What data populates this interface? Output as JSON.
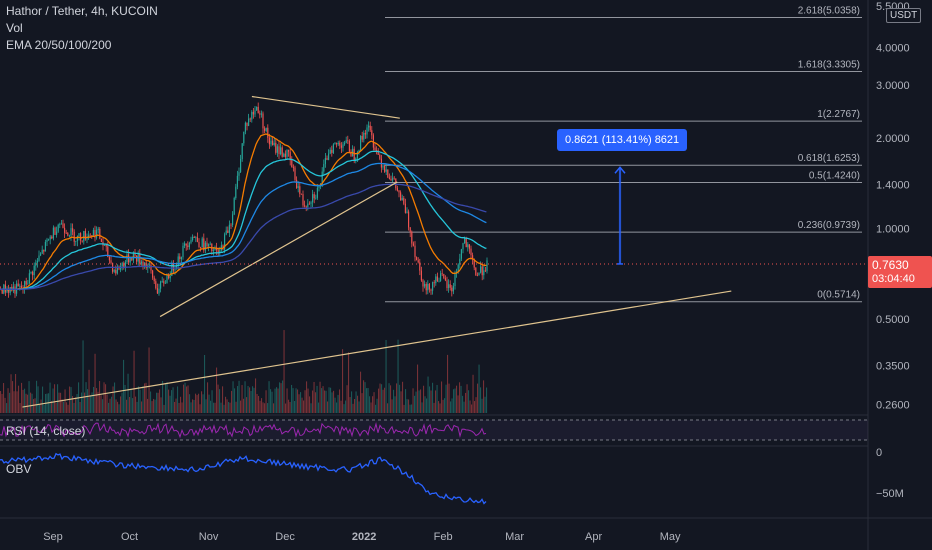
{
  "header": {
    "symbol": "Hathor / Tether, 4h, KUCOIN",
    "volume_label": "Vol",
    "ema_label": "EMA 20/50/100/200",
    "currency": "USDT"
  },
  "current_price": {
    "value": "0.7630",
    "countdown": "03:04:40",
    "color": "#ef5350"
  },
  "measure_label": "0.8621 (113.41%) 8621",
  "indicators": {
    "rsi_label": "RSI (14, close)",
    "obv_label": "OBV"
  },
  "colors": {
    "up": "#26a69a",
    "down": "#ef5350",
    "accent": "#2962ff",
    "trendline": "#e0c48f",
    "rsi": "#9c27b0",
    "obv": "#2962ff"
  },
  "chart_data": {
    "type": "candlestick",
    "y_scale": "log",
    "ylim": [
      0.24,
      5.5
    ],
    "y_ticks": [
      "5.5000",
      "4.0000",
      "3.0000",
      "2.0000",
      "1.4000",
      "1.0000",
      "0.5000",
      "0.3500",
      "0.2600"
    ],
    "x_ticks": [
      "Sep",
      "Oct",
      "Nov",
      "Dec",
      "2022",
      "Feb",
      "Mar",
      "Apr",
      "May"
    ],
    "fib_levels": [
      {
        "label": "2.618(5.0358)",
        "value": 5.0358
      },
      {
        "label": "1.618(3.3305)",
        "value": 3.3305
      },
      {
        "label": "1(2.2767)",
        "value": 2.2767
      },
      {
        "label": "0.618(1.6253)",
        "value": 1.6253
      },
      {
        "label": "0.5(1.4240)",
        "value": 1.424
      },
      {
        "label": "0.236(0.9739)",
        "value": 0.9739
      },
      {
        "label": "0(0.5714)",
        "value": 0.5714
      }
    ],
    "price_path": [
      {
        "date": "2021-08-20",
        "close": 0.63
      },
      {
        "date": "2021-08-28",
        "close": 0.85
      },
      {
        "date": "2021-09-03",
        "close": 1.05
      },
      {
        "date": "2021-09-10",
        "close": 0.93
      },
      {
        "date": "2021-09-18",
        "close": 0.98
      },
      {
        "date": "2021-09-25",
        "close": 0.72
      },
      {
        "date": "2021-10-02",
        "close": 0.82
      },
      {
        "date": "2021-10-08",
        "close": 0.75
      },
      {
        "date": "2021-10-12",
        "close": 0.62
      },
      {
        "date": "2021-10-18",
        "close": 0.75
      },
      {
        "date": "2021-10-25",
        "close": 0.95
      },
      {
        "date": "2021-10-30",
        "close": 0.88
      },
      {
        "date": "2021-11-05",
        "close": 0.82
      },
      {
        "date": "2021-11-10",
        "close": 1.1
      },
      {
        "date": "2021-11-15",
        "close": 2.2
      },
      {
        "date": "2021-11-20",
        "close": 2.55
      },
      {
        "date": "2021-11-25",
        "close": 1.9
      },
      {
        "date": "2021-12-02",
        "close": 1.75
      },
      {
        "date": "2021-12-08",
        "close": 1.2
      },
      {
        "date": "2021-12-14",
        "close": 1.35
      },
      {
        "date": "2021-12-18",
        "close": 1.85
      },
      {
        "date": "2021-12-24",
        "close": 1.95
      },
      {
        "date": "2021-12-28",
        "close": 1.75
      },
      {
        "date": "2022-01-02",
        "close": 2.2
      },
      {
        "date": "2022-01-07",
        "close": 1.7
      },
      {
        "date": "2022-01-12",
        "close": 1.45
      },
      {
        "date": "2022-01-17",
        "close": 1.15
      },
      {
        "date": "2022-01-21",
        "close": 0.82
      },
      {
        "date": "2022-01-25",
        "close": 0.62
      },
      {
        "date": "2022-01-30",
        "close": 0.7
      },
      {
        "date": "2022-02-04",
        "close": 0.62
      },
      {
        "date": "2022-02-09",
        "close": 0.92
      },
      {
        "date": "2022-02-14",
        "close": 0.7
      },
      {
        "date": "2022-02-18",
        "close": 0.763
      }
    ]
  }
}
